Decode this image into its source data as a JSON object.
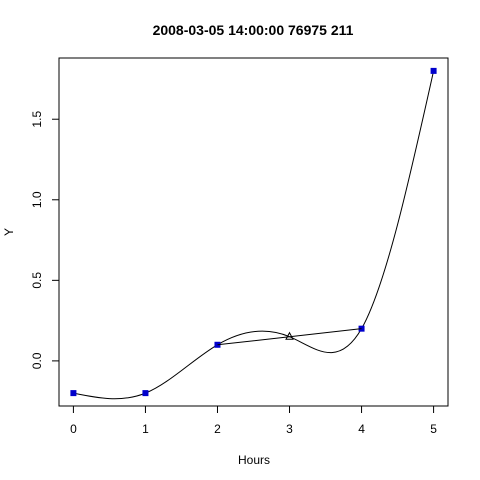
{
  "chart_data": {
    "type": "line",
    "title": "2008-03-05 14:00:00 76975 211",
    "x_label": "Hours",
    "y_label": "Y",
    "x": [
      0,
      1,
      2,
      3,
      4,
      5
    ],
    "series": [
      {
        "color": "#000000",
        "style": "spline",
        "values": [
          -0.2,
          -0.2,
          0.1,
          0.15,
          0.2,
          1.8
        ]
      },
      {
        "color": "#0000cc",
        "style": "square",
        "values": [
          -0.2,
          -0.2,
          0.1,
          null,
          0.2,
          1.8
        ]
      },
      {
        "color": "#000000",
        "style": "segment",
        "values": [
          null,
          null,
          0.1,
          0.15,
          0.2,
          null
        ]
      },
      {
        "color": "#000000",
        "style": "triangle",
        "values": [
          null,
          null,
          null,
          0.15,
          null,
          null
        ]
      }
    ],
    "xlim": [
      -0.2,
      5.2
    ],
    "ylim": [
      -0.28,
      1.88
    ],
    "xticks": [
      0,
      1,
      2,
      3,
      4,
      5
    ],
    "yticks": [
      {
        "value": 0,
        "label": "0.0"
      },
      0.5,
      {
        "value": 1,
        "label": "1.0"
      },
      1.5
    ]
  }
}
